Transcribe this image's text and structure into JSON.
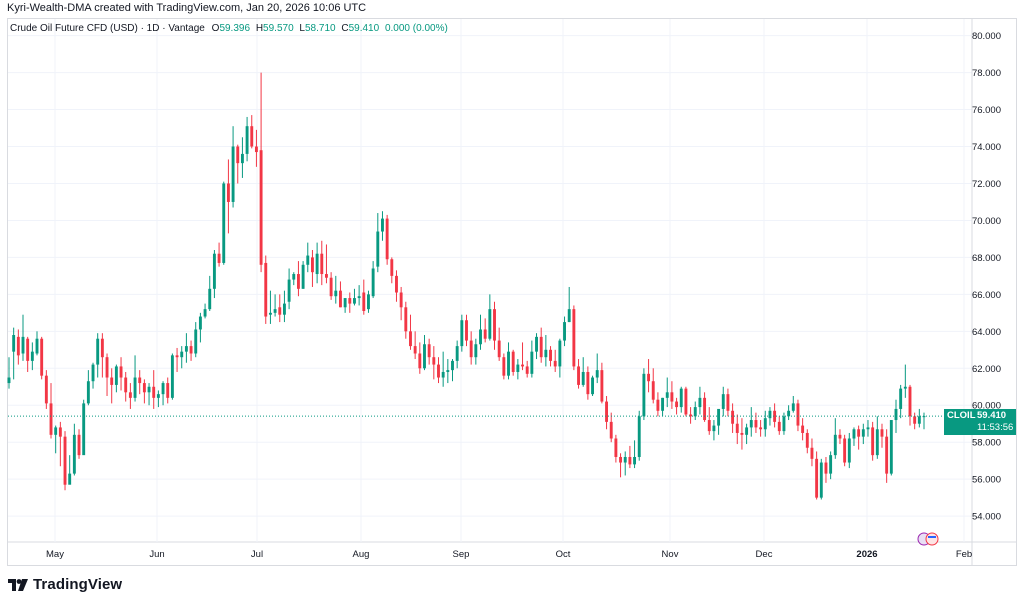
{
  "header": {
    "text": "Kyri-Wealth-DMA created with TradingView.com, Jan 20, 2026 10:06 UTC"
  },
  "legend": {
    "title": "Crude Oil Future CFD (USD) · 1D · Vantage",
    "o_label": "O",
    "o_value": "59.396",
    "h_label": "H",
    "h_value": "59.570",
    "l_label": "L",
    "l_value": "58.710",
    "c_label": "C",
    "c_value": "59.410",
    "change": "0.000 (0.00%)"
  },
  "price_tag": {
    "symbol": "CLOIL",
    "price": "59.410",
    "countdown": "11:53:56"
  },
  "footer": {
    "brand": "TradingView"
  },
  "colors": {
    "up": "#089981",
    "down": "#f23645",
    "grid": "#f0f3fa",
    "text": "#131722"
  },
  "chart_data": {
    "type": "candlestick",
    "y_ticks": [
      "80.000",
      "78.000",
      "76.000",
      "74.000",
      "72.000",
      "70.000",
      "68.000",
      "66.000",
      "64.000",
      "62.000",
      "60.000",
      "58.000",
      "56.000",
      "54.000"
    ],
    "ylim": [
      52.6,
      80.9
    ],
    "x_ticks": [
      "May",
      "Jun",
      "Jul",
      "Aug",
      "Sep",
      "Oct",
      "Nov",
      "Dec",
      "2026",
      "Feb"
    ],
    "last_price": 59.41,
    "grid": true,
    "candles": [
      [
        61.2,
        62.6,
        61.5,
        60.9
      ],
      [
        62.9,
        64.2,
        63.8,
        61.4
      ],
      [
        63.7,
        64.1,
        62.7,
        62.2
      ],
      [
        62.8,
        64.9,
        63.7,
        62.4
      ],
      [
        63.6,
        63.7,
        62.4,
        61.8
      ],
      [
        62.4,
        63.4,
        62.9,
        61.9
      ],
      [
        62.8,
        64.0,
        63.6,
        62.7
      ],
      [
        63.6,
        63.7,
        61.6,
        61.4
      ],
      [
        61.6,
        61.9,
        60.1,
        59.8
      ],
      [
        60.1,
        61.2,
        58.4,
        58.2
      ],
      [
        58.4,
        58.9,
        58.8,
        57.4
      ],
      [
        58.8,
        59.1,
        58.3,
        56.7
      ],
      [
        58.3,
        58.6,
        55.7,
        55.4
      ],
      [
        55.7,
        57.3,
        56.3,
        56.1
      ],
      [
        56.3,
        59.0,
        58.4,
        56.2
      ],
      [
        58.4,
        58.7,
        57.3,
        57.1
      ],
      [
        57.3,
        60.3,
        60.1,
        57.6
      ],
      [
        60.1,
        61.9,
        61.3,
        60.0
      ],
      [
        61.3,
        62.3,
        62.2,
        60.9
      ],
      [
        62.2,
        63.9,
        63.6,
        61.5
      ],
      [
        63.6,
        63.9,
        62.6,
        61.5
      ],
      [
        62.6,
        62.8,
        61.5,
        60.5
      ],
      [
        61.5,
        62.0,
        61.1,
        60.1
      ],
      [
        61.1,
        62.2,
        62.1,
        60.7
      ],
      [
        62.1,
        62.6,
        61.5,
        60.8
      ],
      [
        61.5,
        61.8,
        60.7,
        60.2
      ],
      [
        60.7,
        61.2,
        60.4,
        59.8
      ],
      [
        60.4,
        62.7,
        61.5,
        60.2
      ],
      [
        61.5,
        61.9,
        61.2,
        60.6
      ],
      [
        61.2,
        61.4,
        60.7,
        60.1
      ],
      [
        60.7,
        61.2,
        61.0,
        60.0
      ],
      [
        61.0,
        61.9,
        60.4,
        59.8
      ],
      [
        60.4,
        60.8,
        60.6,
        59.9
      ],
      [
        60.6,
        61.3,
        61.2,
        60.0
      ],
      [
        61.2,
        61.5,
        60.4,
        60.1
      ],
      [
        60.4,
        62.8,
        62.7,
        60.3
      ],
      [
        62.7,
        63.1,
        62.6,
        61.8
      ],
      [
        62.6,
        63.2,
        62.9,
        62.0
      ],
      [
        62.9,
        63.9,
        63.2,
        62.3
      ],
      [
        63.2,
        63.5,
        62.8,
        62.4
      ],
      [
        62.8,
        64.5,
        64.1,
        62.6
      ],
      [
        64.1,
        65.0,
        64.8,
        63.4
      ],
      [
        64.8,
        65.5,
        65.2,
        64.7
      ],
      [
        65.2,
        67.0,
        66.3,
        65.1
      ],
      [
        66.3,
        68.4,
        68.2,
        65.8
      ],
      [
        68.2,
        68.8,
        67.7,
        67.5
      ],
      [
        67.7,
        72.1,
        72.0,
        67.6
      ],
      [
        72.0,
        73.3,
        71.0,
        69.3
      ],
      [
        71.0,
        75.1,
        74.0,
        70.7
      ],
      [
        74.0,
        74.1,
        73.1,
        72.0
      ],
      [
        73.1,
        74.5,
        73.6,
        72.3
      ],
      [
        73.6,
        75.6,
        75.1,
        73.2
      ],
      [
        75.1,
        75.7,
        74.0,
        73.9
      ],
      [
        74.0,
        74.9,
        73.7,
        72.9
      ],
      [
        73.8,
        78.0,
        67.6,
        67.2
      ],
      [
        67.7,
        68.1,
        64.8,
        64.4
      ],
      [
        64.9,
        66.2,
        65.0,
        64.4
      ],
      [
        65.0,
        66.0,
        65.2,
        64.8
      ],
      [
        65.3,
        66.0,
        64.9,
        64.5
      ],
      [
        64.9,
        66.2,
        65.5,
        64.5
      ],
      [
        65.6,
        67.4,
        66.8,
        65.2
      ],
      [
        66.8,
        67.2,
        67.1,
        66.5
      ],
      [
        67.1,
        67.8,
        66.3,
        65.9
      ],
      [
        66.3,
        67.8,
        67.6,
        66.3
      ],
      [
        67.6,
        68.8,
        68.1,
        67.2
      ],
      [
        68.0,
        68.4,
        67.2,
        66.4
      ],
      [
        67.1,
        68.8,
        68.2,
        66.6
      ],
      [
        68.2,
        68.9,
        67.1,
        66.5
      ],
      [
        67.1,
        68.7,
        66.9,
        66.6
      ],
      [
        66.9,
        67.2,
        65.9,
        65.7
      ],
      [
        65.9,
        67.0,
        66.2,
        65.5
      ],
      [
        66.2,
        66.7,
        65.3,
        65.3
      ],
      [
        65.3,
        65.7,
        65.8,
        65.0
      ],
      [
        65.8,
        66.1,
        65.5,
        65.0
      ],
      [
        65.5,
        66.3,
        65.8,
        65.4
      ],
      [
        65.8,
        66.5,
        65.9,
        65.4
      ],
      [
        66.1,
        66.8,
        65.1,
        64.9
      ],
      [
        65.2,
        66.2,
        66.0,
        65.0
      ],
      [
        65.9,
        67.8,
        67.4,
        65.8
      ],
      [
        67.5,
        70.4,
        69.4,
        67.2
      ],
      [
        69.4,
        70.5,
        70.1,
        68.9
      ],
      [
        70.1,
        70.3,
        67.9,
        67.6
      ],
      [
        67.9,
        68.0,
        67.0,
        66.6
      ],
      [
        67.0,
        67.3,
        66.1,
        65.6
      ],
      [
        66.1,
        66.4,
        65.3,
        64.6
      ],
      [
        65.3,
        65.6,
        64.0,
        63.6
      ],
      [
        64.0,
        64.9,
        63.2,
        63.0
      ],
      [
        63.2,
        64.0,
        62.8,
        62.5
      ],
      [
        62.8,
        63.4,
        62.0,
        61.7
      ],
      [
        62.0,
        63.8,
        63.3,
        61.9
      ],
      [
        63.3,
        63.6,
        62.6,
        62.2
      ],
      [
        62.6,
        63.2,
        62.2,
        61.4
      ],
      [
        62.2,
        62.6,
        61.5,
        61.2
      ],
      [
        61.5,
        62.9,
        61.8,
        61.0
      ],
      [
        61.8,
        62.5,
        61.9,
        61.2
      ],
      [
        61.9,
        62.5,
        62.4,
        61.3
      ],
      [
        62.4,
        63.5,
        63.2,
        62.0
      ],
      [
        63.2,
        64.9,
        64.6,
        62.9
      ],
      [
        64.6,
        64.9,
        63.5,
        63.2
      ],
      [
        63.5,
        64.0,
        62.6,
        62.2
      ],
      [
        62.6,
        63.6,
        63.3,
        62.2
      ],
      [
        63.3,
        64.9,
        64.1,
        63.0
      ],
      [
        64.1,
        64.7,
        63.6,
        63.4
      ],
      [
        63.6,
        66.0,
        65.2,
        63.5
      ],
      [
        65.2,
        65.6,
        63.5,
        63.0
      ],
      [
        63.5,
        64.2,
        62.6,
        62.4
      ],
      [
        62.6,
        62.8,
        61.6,
        61.4
      ],
      [
        61.6,
        63.4,
        62.9,
        61.4
      ],
      [
        62.9,
        63.0,
        61.8,
        61.6
      ],
      [
        61.8,
        62.5,
        62.2,
        61.4
      ],
      [
        62.2,
        63.4,
        62.1,
        61.9
      ],
      [
        62.1,
        62.4,
        61.7,
        61.5
      ],
      [
        61.7,
        63.5,
        62.9,
        61.5
      ],
      [
        62.9,
        63.9,
        63.7,
        62.5
      ],
      [
        63.7,
        64.2,
        62.6,
        62.3
      ],
      [
        62.6,
        63.8,
        63.0,
        62.1
      ],
      [
        63.0,
        63.2,
        62.4,
        62.1
      ],
      [
        62.4,
        63.0,
        62.1,
        61.8
      ],
      [
        62.1,
        63.6,
        63.5,
        61.5
      ],
      [
        63.5,
        64.8,
        64.5,
        63.2
      ],
      [
        64.5,
        66.4,
        65.2,
        64.5
      ],
      [
        65.2,
        65.4,
        62.1,
        61.9
      ],
      [
        62.1,
        62.5,
        61.1,
        60.9
      ],
      [
        61.1,
        62.6,
        61.8,
        61.0
      ],
      [
        61.8,
        62.1,
        60.6,
        60.3
      ],
      [
        60.6,
        61.6,
        61.5,
        60.5
      ],
      [
        61.5,
        62.8,
        61.9,
        61.2
      ],
      [
        61.9,
        62.3,
        60.2,
        60.1
      ],
      [
        60.2,
        60.5,
        59.1,
        58.7
      ],
      [
        59.1,
        59.6,
        58.2,
        58.0
      ],
      [
        58.2,
        58.4,
        57.2,
        56.9
      ],
      [
        57.2,
        57.4,
        56.9,
        56.1
      ],
      [
        56.9,
        57.5,
        57.2,
        56.2
      ],
      [
        57.2,
        57.8,
        56.8,
        56.6
      ],
      [
        56.8,
        58.1,
        57.2,
        56.6
      ],
      [
        57.2,
        59.7,
        59.4,
        57.0
      ],
      [
        59.4,
        62.0,
        61.7,
        59.2
      ],
      [
        61.7,
        62.5,
        61.3,
        60.7
      ],
      [
        61.3,
        62.0,
        60.3,
        60.1
      ],
      [
        60.3,
        60.7,
        59.7,
        59.4
      ],
      [
        59.7,
        60.4,
        60.4,
        59.4
      ],
      [
        60.4,
        61.5,
        60.7,
        59.9
      ],
      [
        60.7,
        61.3,
        60.2,
        59.8
      ],
      [
        60.2,
        60.4,
        59.9,
        59.5
      ],
      [
        59.9,
        61.0,
        60.9,
        59.6
      ],
      [
        60.9,
        61.0,
        59.5,
        59.4
      ],
      [
        59.5,
        59.9,
        59.4,
        59.0
      ],
      [
        59.4,
        60.2,
        59.9,
        59.2
      ],
      [
        59.9,
        61.0,
        60.4,
        59.5
      ],
      [
        60.4,
        60.7,
        59.2,
        59.1
      ],
      [
        59.2,
        59.9,
        58.6,
        58.4
      ],
      [
        58.6,
        59.2,
        58.9,
        58.1
      ],
      [
        58.9,
        59.7,
        59.8,
        58.4
      ],
      [
        59.8,
        61.0,
        60.6,
        59.4
      ],
      [
        60.6,
        60.9,
        59.7,
        59.4
      ],
      [
        59.7,
        60.1,
        59.0,
        58.5
      ],
      [
        59.0,
        59.5,
        58.5,
        57.9
      ],
      [
        58.5,
        59.3,
        58.4,
        57.6
      ],
      [
        58.4,
        59.0,
        58.8,
        57.9
      ],
      [
        58.8,
        59.9,
        59.2,
        58.3
      ],
      [
        59.2,
        59.6,
        58.8,
        58.5
      ],
      [
        58.8,
        59.2,
        58.7,
        58.3
      ],
      [
        58.7,
        59.7,
        59.3,
        58.3
      ],
      [
        59.3,
        59.9,
        59.7,
        58.9
      ],
      [
        59.7,
        60.1,
        59.1,
        58.8
      ],
      [
        59.1,
        59.4,
        58.6,
        58.4
      ],
      [
        58.6,
        59.6,
        59.4,
        58.4
      ],
      [
        59.4,
        60.0,
        59.7,
        59.2
      ],
      [
        59.7,
        60.5,
        60.1,
        59.6
      ],
      [
        60.1,
        60.3,
        58.9,
        58.6
      ],
      [
        58.9,
        59.3,
        58.5,
        58.1
      ],
      [
        58.5,
        58.7,
        57.7,
        57.4
      ],
      [
        57.7,
        58.2,
        57.1,
        56.7
      ],
      [
        57.1,
        57.5,
        55.0,
        54.9
      ],
      [
        55.0,
        57.1,
        56.9,
        54.9
      ],
      [
        56.9,
        57.2,
        56.3,
        55.8
      ],
      [
        56.3,
        57.5,
        57.3,
        56.0
      ],
      [
        57.3,
        59.3,
        58.4,
        57.1
      ],
      [
        58.4,
        58.7,
        58.2,
        57.9
      ],
      [
        58.2,
        58.4,
        56.9,
        56.7
      ],
      [
        56.9,
        58.5,
        58.2,
        56.6
      ],
      [
        58.2,
        58.8,
        58.7,
        57.8
      ],
      [
        58.7,
        58.9,
        58.3,
        57.6
      ],
      [
        58.3,
        59.0,
        58.7,
        57.9
      ],
      [
        58.7,
        59.2,
        58.8,
        58.3
      ],
      [
        58.8,
        59.1,
        57.3,
        57.0
      ],
      [
        57.3,
        59.4,
        58.7,
        57.1
      ],
      [
        58.7,
        59.0,
        58.3,
        57.7
      ],
      [
        58.3,
        58.7,
        56.3,
        55.8
      ],
      [
        56.3,
        59.2,
        59.2,
        56.2
      ],
      [
        59.2,
        60.3,
        59.8,
        58.5
      ],
      [
        59.8,
        61.1,
        60.9,
        59.3
      ],
      [
        60.9,
        62.2,
        61.0,
        60.4
      ],
      [
        61.0,
        61.1,
        59.4,
        58.9
      ],
      [
        59.4,
        59.6,
        59.0,
        58.7
      ],
      [
        59.0,
        59.8,
        59.4,
        58.8
      ],
      [
        59.4,
        59.6,
        59.41,
        58.7
      ]
    ]
  }
}
